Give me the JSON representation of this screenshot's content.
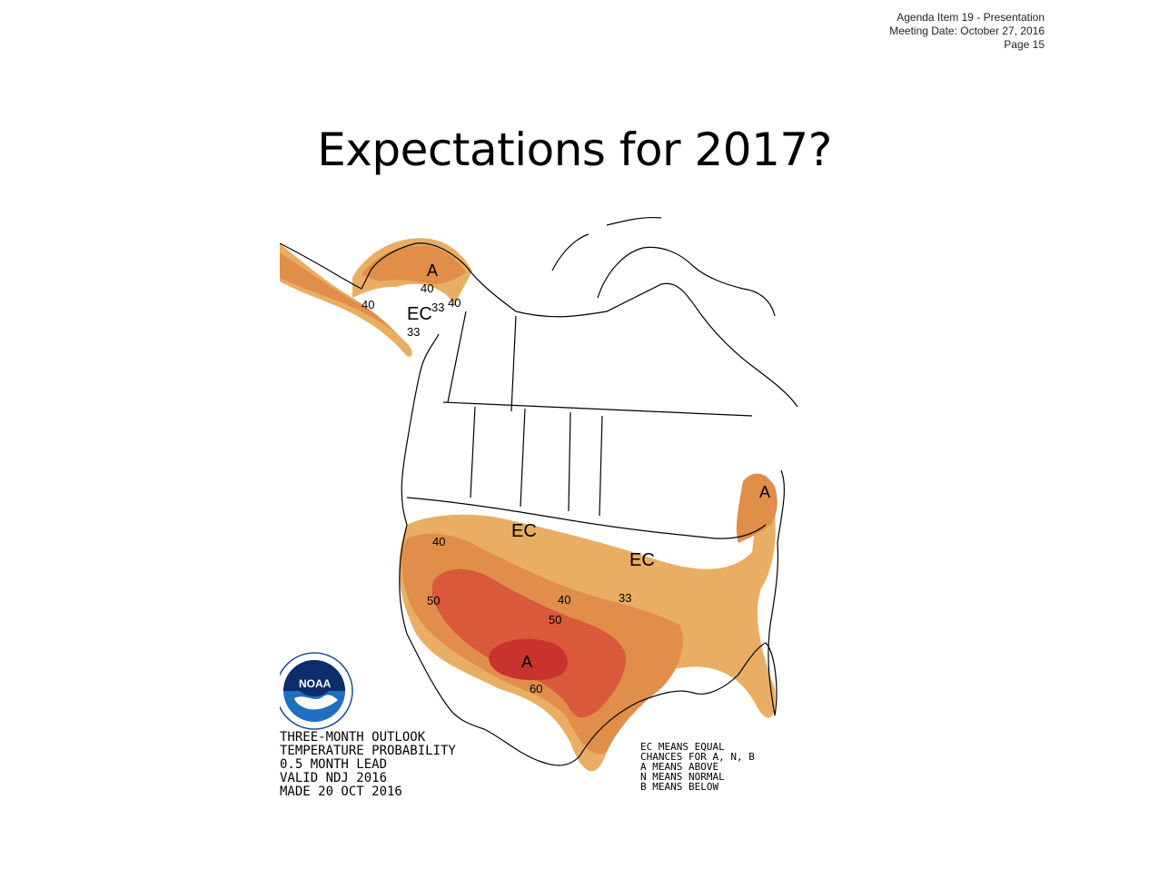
{
  "header": {
    "line1": "Agenda Item 19 - Presentation",
    "line2": "Meeting Date:  October 27, 2016",
    "line3": "Page 15"
  },
  "title": "Expectations for 2017?",
  "map": {
    "caption": {
      "line1": "THREE-MONTH OUTLOOK",
      "line2": "TEMPERATURE PROBABILITY",
      "line3": "0.5 MONTH LEAD",
      "line4": "VALID NDJ 2016",
      "line5": "MADE 20 OCT 2016"
    },
    "legend": {
      "line1": "EC MEANS EQUAL",
      "line2": "CHANCES FOR A, N, B",
      "line3": "A MEANS ABOVE",
      "line4": "N MEANS NORMAL",
      "line5": "B MEANS BELOW"
    },
    "labels": {
      "ak_a": "A",
      "ak_40a": "40",
      "ak_33": "33",
      "ak_40b": "40",
      "ak_40c": "40",
      "ak_ec": "EC",
      "ak_33b": "33",
      "ne_a": "A",
      "us_ec1": "EC",
      "us_ec2": "EC",
      "c40": "40",
      "c50w": "50",
      "c40b": "40",
      "c33": "33",
      "c50c": "50",
      "sw_a": "A",
      "c60": "60"
    },
    "colors": {
      "cat40": "#e9ae63",
      "cat50": "#e08e4a",
      "cat60": "#d9593a",
      "cat70": "#c9332e",
      "land_outline": "#000000"
    },
    "logo": {
      "agency": "NOAA",
      "icon": "noaa-logo-icon"
    }
  }
}
